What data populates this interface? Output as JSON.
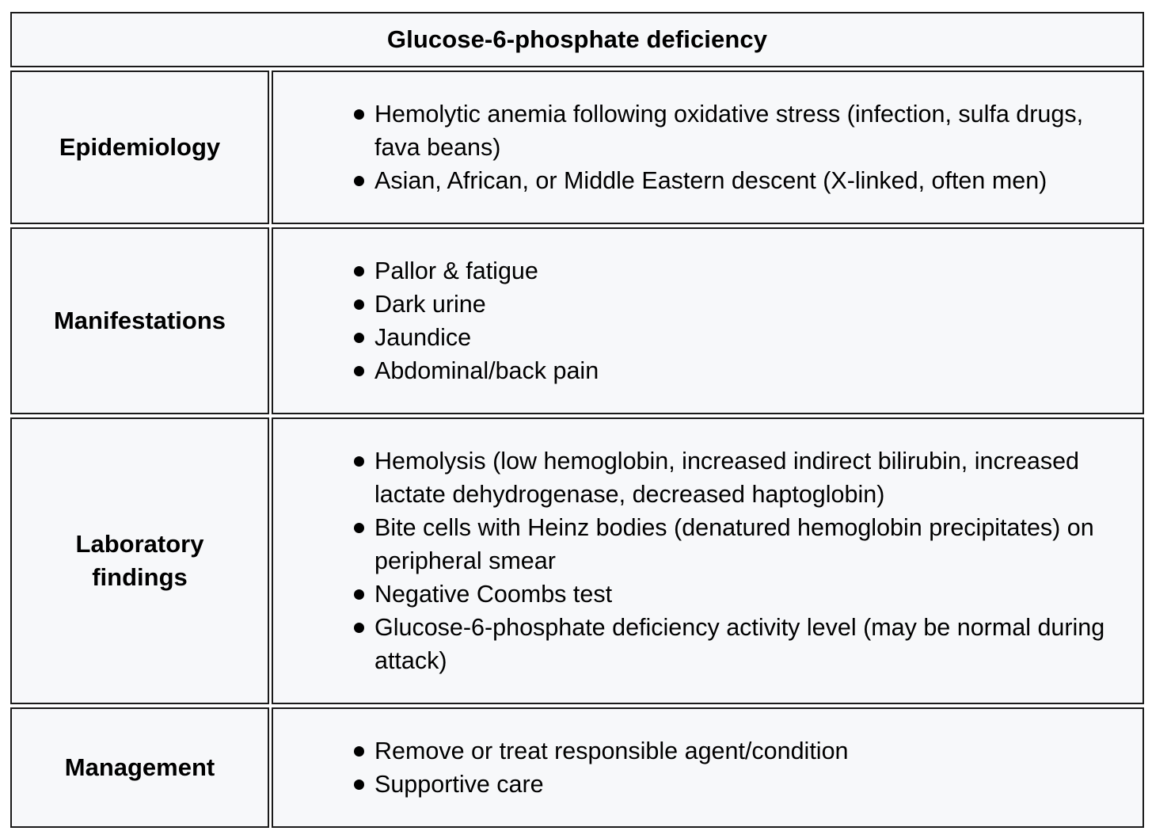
{
  "title": "Glucose-6-phosphate deficiency",
  "rows": [
    {
      "label": "Epidemiology",
      "items": [
        "Hemolytic anemia following oxidative stress (infection, sulfa drugs, fava beans)",
        "Asian, African, or Middle Eastern descent (X-linked, often men)"
      ]
    },
    {
      "label": "Manifestations",
      "items": [
        "Pallor & fatigue",
        "Dark urine",
        "Jaundice",
        "Abdominal/back pain"
      ]
    },
    {
      "label": "Laboratory findings",
      "items": [
        "Hemolysis (low hemoglobin, increased indirect bilirubin, increased lactate dehydrogenase, decreased haptoglobin)",
        "Bite cells with Heinz bodies (denatured hemoglobin precipitates) on peripheral smear",
        "Negative Coombs test",
        "Glucose-6-phosphate deficiency activity level (may be normal during attack)"
      ]
    },
    {
      "label": "Management",
      "items": [
        "Remove or treat responsible agent/condition",
        "Supportive care"
      ]
    }
  ]
}
